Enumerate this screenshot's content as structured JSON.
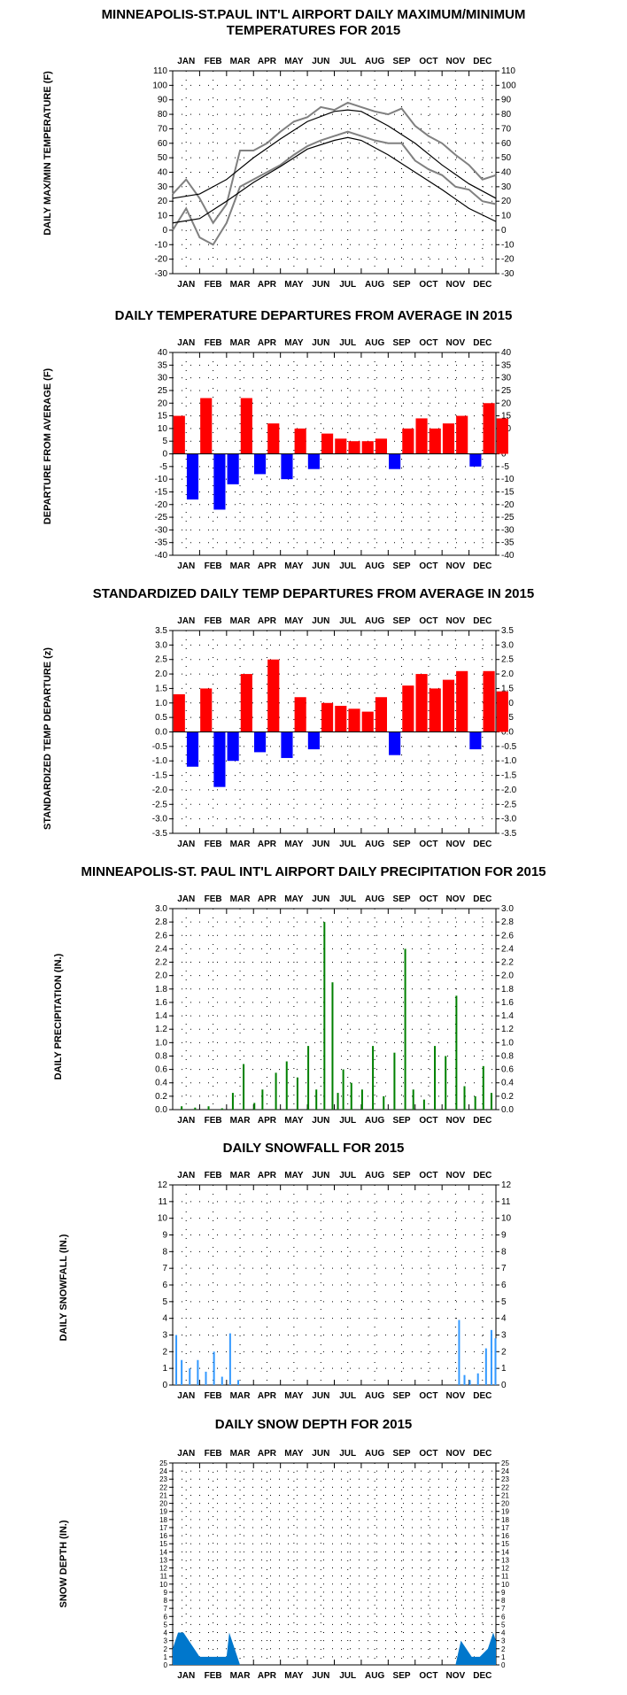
{
  "months": [
    "JAN",
    "FEB",
    "MAR",
    "APR",
    "MAY",
    "JUN",
    "JUL",
    "AUG",
    "SEP",
    "OCT",
    "NOV",
    "DEC"
  ],
  "colors": {
    "max_min": "#808080",
    "normal_line": "#000000",
    "warm": "#ff0000",
    "cold": "#0000ff",
    "precip": "#008000",
    "snow": "#3399ff",
    "depth": "#0077cc"
  },
  "chart_data": [
    {
      "id": "temps",
      "type": "line",
      "title": "MINNEAPOLIS-ST.PAUL INT'L AIRPORT DAILY MAXIMUM/MINIMUM TEMPERATURES FOR 2015",
      "ylabel": "DAILY MAX/MIN TEMPERATURE (F)",
      "ylim": [
        -30,
        110
      ],
      "y_ticks": [
        -30,
        -20,
        -10,
        0,
        10,
        20,
        30,
        40,
        50,
        60,
        70,
        80,
        90,
        100,
        110
      ],
      "grid": true,
      "series": [
        {
          "name": "",
          "style": "daily max (gray)",
          "x_month": [
            0,
            0.5,
            1,
            1.5,
            2,
            2.5,
            3,
            3.5,
            4,
            4.5,
            5,
            5.5,
            6,
            6.5,
            7,
            7.5,
            8,
            8.5,
            9,
            9.5,
            10,
            10.5,
            11,
            11.5,
            12
          ],
          "values": [
            25,
            35,
            22,
            5,
            18,
            55,
            55,
            60,
            68,
            75,
            78,
            85,
            83,
            88,
            85,
            82,
            80,
            84,
            72,
            65,
            60,
            52,
            45,
            35,
            38
          ]
        },
        {
          "name": "",
          "style": "daily min (gray)",
          "x_month": [
            0,
            0.5,
            1,
            1.5,
            2,
            2.5,
            3,
            3.5,
            4,
            4.5,
            5,
            5.5,
            6,
            6.5,
            7,
            7.5,
            8,
            8.5,
            9,
            9.5,
            10,
            10.5,
            11,
            11.5,
            12
          ],
          "values": [
            0,
            15,
            -5,
            -10,
            5,
            30,
            35,
            40,
            45,
            52,
            58,
            62,
            65,
            68,
            65,
            62,
            60,
            60,
            48,
            42,
            38,
            30,
            28,
            20,
            18
          ]
        },
        {
          "name": "",
          "style": "normal max (black)",
          "x_month": [
            0,
            1,
            2,
            3,
            4,
            5,
            6,
            6.5,
            7,
            8,
            9,
            10,
            11,
            12
          ],
          "values": [
            22,
            25,
            35,
            50,
            63,
            75,
            82,
            83,
            82,
            72,
            60,
            45,
            32,
            22
          ]
        },
        {
          "name": "",
          "style": "normal min (black)",
          "x_month": [
            0,
            1,
            2,
            3,
            4,
            5,
            6,
            6.5,
            7,
            8,
            9,
            10,
            11,
            12
          ],
          "values": [
            5,
            8,
            20,
            33,
            44,
            56,
            62,
            64,
            62,
            52,
            40,
            28,
            15,
            6
          ]
        }
      ]
    },
    {
      "id": "departures",
      "type": "bar",
      "title": "DAILY TEMPERATURE DEPARTURES FROM AVERAGE IN 2015",
      "ylabel": "DEPARTURE FROM AVERAGE (F)",
      "ylim": [
        -40,
        40
      ],
      "y_ticks": [
        -40,
        -35,
        -30,
        -25,
        -20,
        -15,
        -10,
        -5,
        0,
        5,
        10,
        15,
        20,
        25,
        30,
        35,
        40
      ],
      "grid": true,
      "x_month": [
        0,
        0.5,
        1,
        1.5,
        2,
        2.5,
        3,
        3.5,
        4,
        4.5,
        5,
        5.5,
        6,
        6.5,
        7,
        7.5,
        8,
        8.5,
        9,
        9.5,
        10,
        10.5,
        11,
        11.5,
        12
      ],
      "values": [
        15,
        -18,
        22,
        -22,
        -12,
        22,
        -8,
        12,
        -10,
        10,
        -6,
        8,
        6,
        5,
        5,
        6,
        -6,
        10,
        14,
        10,
        12,
        15,
        -5,
        20,
        14
      ]
    },
    {
      "id": "standardized",
      "type": "bar",
      "title": "STANDARDIZED DAILY TEMP DEPARTURES FROM AVERAGE IN 2015",
      "ylabel": "STANDARDIZED TEMP DEPARTURE (z)",
      "ylim": [
        -3.5,
        3.5
      ],
      "y_ticks": [
        -3.5,
        -3.0,
        -2.5,
        -2.0,
        -1.5,
        -1.0,
        -0.5,
        0.0,
        0.5,
        1.0,
        1.5,
        2.0,
        2.5,
        3.0,
        3.5
      ],
      "grid": true,
      "x_month": [
        0,
        0.5,
        1,
        1.5,
        2,
        2.5,
        3,
        3.5,
        4,
        4.5,
        5,
        5.5,
        6,
        6.5,
        7,
        7.5,
        8,
        8.5,
        9,
        9.5,
        10,
        10.5,
        11,
        11.5,
        12
      ],
      "values": [
        1.3,
        -1.2,
        1.5,
        -1.9,
        -1.0,
        2.0,
        -0.7,
        2.5,
        -0.9,
        1.2,
        -0.6,
        1.0,
        0.9,
        0.8,
        0.7,
        1.2,
        -0.8,
        1.6,
        2.0,
        1.5,
        1.8,
        2.1,
        -0.6,
        2.1,
        1.4
      ]
    },
    {
      "id": "precip",
      "type": "bar",
      "title": "MINNEAPOLIS-ST. PAUL INT'L AIRPORT DAILY PRECIPITATION FOR 2015",
      "ylabel": "DAILY PRECIPITATION (IN.)",
      "ylim": [
        0,
        3.0
      ],
      "y_ticks": [
        0.0,
        0.2,
        0.4,
        0.6,
        0.8,
        1.0,
        1.2,
        1.4,
        1.6,
        1.8,
        2.0,
        2.2,
        2.4,
        2.6,
        2.8,
        3.0
      ],
      "grid": true,
      "x_month": [
        0.3,
        0.8,
        1.3,
        1.8,
        2.2,
        2.6,
        3.0,
        3.3,
        3.8,
        4.2,
        4.6,
        5.0,
        5.3,
        5.6,
        5.9,
        6.1,
        6.3,
        6.6,
        7.0,
        7.4,
        7.8,
        8.2,
        8.6,
        8.9,
        9.3,
        9.7,
        10.1,
        10.5,
        10.8,
        11.2,
        11.5,
        11.8
      ],
      "values": [
        0.05,
        0.03,
        0.05,
        0.02,
        0.25,
        0.68,
        0.1,
        0.3,
        0.55,
        0.72,
        0.48,
        0.95,
        0.3,
        2.8,
        1.9,
        0.25,
        0.6,
        0.4,
        0.3,
        0.95,
        0.2,
        0.85,
        2.4,
        0.3,
        0.15,
        0.95,
        0.8,
        1.7,
        0.35,
        0.2,
        0.65,
        0.25
      ]
    },
    {
      "id": "snowfall",
      "type": "bar",
      "title": "DAILY SNOWFALL FOR 2015",
      "ylabel": "DAILY SNOWFALL (IN.)",
      "ylim": [
        0,
        12
      ],
      "y_ticks": [
        0,
        1,
        2,
        3,
        4,
        5,
        6,
        7,
        8,
        9,
        10,
        11,
        12
      ],
      "grid": true,
      "x_month": [
        0.1,
        0.3,
        0.6,
        0.9,
        1.2,
        1.5,
        1.8,
        2.1,
        2.4,
        10.6,
        10.8,
        11.0,
        11.3,
        11.6,
        11.8,
        11.95
      ],
      "values": [
        3.0,
        1.5,
        1.0,
        1.5,
        0.8,
        2.0,
        0.5,
        3.1,
        0.3,
        3.9,
        0.6,
        0.3,
        0.7,
        2.2,
        3.3,
        2.8
      ]
    },
    {
      "id": "snowdepth",
      "type": "area",
      "title": "DAILY SNOW DEPTH FOR 2015",
      "ylabel": "SNOW DEPTH (IN.)",
      "ylim": [
        0,
        25
      ],
      "y_ticks": [
        0,
        1,
        2,
        3,
        4,
        5,
        6,
        7,
        8,
        9,
        10,
        11,
        12,
        13,
        14,
        15,
        16,
        17,
        18,
        19,
        20,
        21,
        22,
        23,
        24,
        25
      ],
      "grid": true,
      "x_month": [
        0,
        0.1,
        0.2,
        0.4,
        0.6,
        0.8,
        1.0,
        1.3,
        1.6,
        2.0,
        2.1,
        2.4,
        2.5,
        10.5,
        10.7,
        10.9,
        11.1,
        11.4,
        11.7,
        11.9,
        12
      ],
      "values": [
        2,
        3,
        4,
        4,
        3,
        2,
        1,
        1,
        1,
        1,
        4,
        1,
        0,
        0,
        3,
        2,
        1,
        1,
        2,
        4,
        3
      ]
    }
  ]
}
